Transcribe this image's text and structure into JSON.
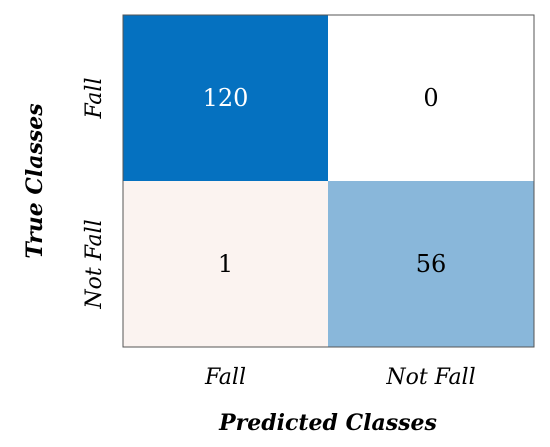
{
  "chart_data": {
    "type": "heatmap",
    "title": "",
    "xlabel": "Predicted Classes",
    "ylabel": "True Classes",
    "x_categories": [
      "Fall",
      "Not Fall"
    ],
    "y_categories": [
      "Fall",
      "Not Fall"
    ],
    "values": [
      [
        120,
        0
      ],
      [
        1,
        56
      ]
    ],
    "value_labels": [
      [
        "120",
        "0"
      ],
      [
        "1",
        "56"
      ]
    ],
    "color_scale": {
      "low": "#fdf4f0",
      "high": "#0571c0",
      "max_value": 120
    },
    "grid": false,
    "legend": "none"
  }
}
